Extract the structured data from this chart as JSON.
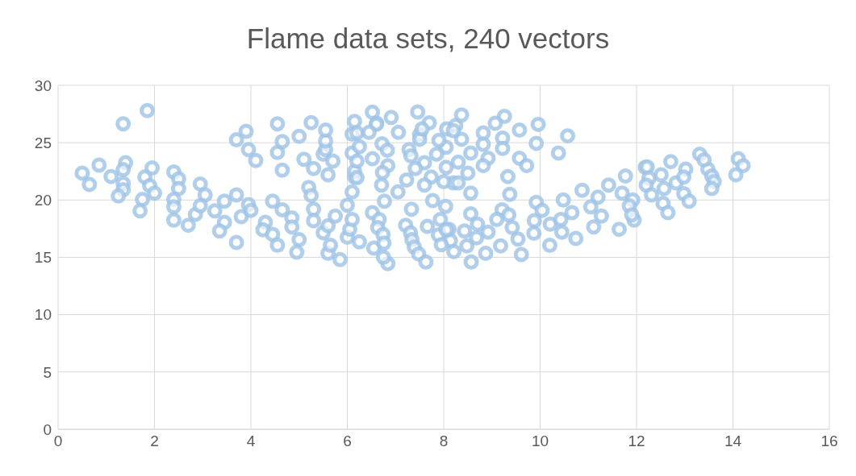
{
  "chart_data": {
    "type": "scatter",
    "title": "Flame data sets, 240 vectors",
    "xlim": [
      0,
      16
    ],
    "xticks": [
      0,
      2,
      4,
      6,
      8,
      10,
      12,
      14,
      16
    ],
    "ylim": [
      0,
      30
    ],
    "yticks": [
      0,
      5,
      10,
      15,
      20,
      25,
      30
    ],
    "grid": true,
    "marker": "circle",
    "series": [
      {
        "color": "#9dc3e6",
        "x": [
          0.5,
          0.65,
          0.85,
          1.1,
          1.35,
          1.4,
          1.35,
          1.35,
          1.35,
          1.25,
          1.85,
          1.95,
          1.8,
          1.9,
          2.0,
          1.75,
          1.7,
          2.4,
          2.5,
          2.5,
          2.4,
          2.4,
          2.4,
          2.7,
          2.85,
          2.95,
          3.05,
          2.95,
          3.25,
          3.45,
          3.45,
          3.35,
          3.7,
          3.8,
          3.7,
          3.95,
          4.0,
          3.7,
          3.9,
          3.95,
          4.1,
          4.45,
          4.3,
          4.25,
          4.45,
          4.55,
          4.65,
          4.85,
          4.85,
          5.0,
          4.95,
          4.55,
          4.55,
          4.65,
          4.65,
          5.0,
          5.1,
          5.25,
          5.3,
          5.2,
          5.25,
          5.3,
          5.3,
          5.5,
          5.6,
          5.6,
          5.65,
          5.75,
          5.85,
          5.5,
          5.55,
          5.55,
          5.55,
          5.6,
          5.7,
          6.0,
          6.05,
          6.1,
          6.0,
          6.1,
          6.15,
          6.15,
          6.1,
          6.1,
          6.15,
          6.2,
          6.25,
          6.2,
          6.2,
          6.25,
          6.52,
          6.61,
          6.91,
          7.46,
          7.7,
          7.06,
          7.5,
          8.06,
          8.25,
          6.72,
          6.83,
          7.28,
          8.05,
          6.52,
          7.32,
          7.6,
          6.84,
          8.05,
          6.73,
          7.41,
          7.74,
          7.23,
          7.6,
          8.2,
          6.71,
          7.05,
          7.77,
          8.04,
          6.77,
          7.33,
          6.52,
          6.66,
          7.93,
          7.21,
          7.66,
          6.63,
          8.11,
          6.74,
          7.31,
          7.34,
          7.89,
          8.14,
          6.55,
          6.76,
          7.39,
          7.48,
          6.84,
          7.63,
          6.75,
          8.37,
          9.26,
          9.07,
          9.96,
          9.57,
          8.82,
          10.57,
          8.37,
          9.22,
          9.92,
          8.2,
          8.82,
          9.22,
          8.56,
          10.38,
          8.92,
          9.57,
          8.3,
          8.82,
          9.72,
          8.5,
          9.33,
          8.3,
          8.56,
          9.37,
          9.92,
          10.48,
          10.87,
          11.42,
          11.77,
          12.18,
          11.2,
          11.7,
          11.05,
          11.92,
          8.56,
          9.21,
          9.35,
          8.7,
          9.1,
          9.88,
          10.21,
          10.43,
          10.66,
          10.04,
          11.27,
          11.11,
          11.95,
          8.43,
          8.92,
          9.42,
          9.87,
          10.45,
          10.74,
          11.64,
          8.48,
          9.18,
          9.54,
          10.2,
          8.21,
          8.87,
          9.61,
          8.57,
          8.68,
          12.22,
          12.71,
          13.31,
          14.11,
          14.21,
          14.06,
          12.51,
          13.02,
          13.48,
          12.26,
          12.82,
          13.56,
          13.61,
          13.56,
          12.2,
          12.57,
          12.31,
          12.98,
          13.09,
          12.55,
          12.65,
          12.98,
          13.4,
          7.5,
          7.55,
          6.6,
          6.45,
          7.9,
          7.85,
          8.0,
          7.95,
          8.05,
          11.85,
          11.9
        ],
        "values": [
          22.35,
          21.35,
          23.05,
          22.05,
          26.65,
          23.25,
          22.65,
          21.45,
          20.9,
          20.35,
          27.8,
          22.8,
          22.0,
          21.25,
          20.6,
          20.05,
          19.05,
          22.45,
          21.85,
          21.0,
          20.05,
          19.4,
          18.25,
          17.8,
          18.75,
          21.4,
          20.45,
          19.5,
          19.05,
          19.9,
          18.05,
          17.3,
          20.45,
          18.55,
          16.3,
          19.6,
          19.1,
          25.25,
          26.0,
          24.4,
          23.45,
          19.9,
          18.05,
          17.4,
          17.0,
          16.05,
          19.15,
          18.45,
          17.65,
          16.55,
          15.45,
          26.65,
          24.15,
          25.1,
          22.6,
          25.55,
          23.55,
          26.75,
          22.75,
          21.1,
          20.4,
          19.2,
          18.2,
          17.15,
          17.75,
          15.35,
          16.05,
          18.6,
          14.8,
          24.0,
          24.4,
          25.15,
          26.1,
          22.2,
          23.4,
          16.75,
          17.45,
          18.3,
          19.55,
          20.7,
          22.0,
          22.5,
          24.1,
          25.75,
          26.85,
          25.85,
          24.65,
          23.4,
          21.95,
          16.35,
          27.66,
          26.7,
          27.2,
          27.68,
          26.73,
          25.9,
          25.7,
          26.2,
          26.5,
          24.9,
          24.35,
          24.4,
          24.6,
          23.6,
          23.85,
          23.25,
          23.0,
          22.85,
          22.4,
          22.75,
          22.0,
          21.75,
          21.3,
          21.5,
          21.3,
          20.7,
          19.95,
          19.45,
          19.9,
          19.2,
          18.9,
          18.3,
          18.3,
          17.8,
          17.7,
          17.6,
          17.45,
          17.0,
          17.15,
          16.55,
          16.95,
          16.45,
          15.8,
          16.25,
          15.9,
          15.3,
          14.45,
          14.6,
          15.0,
          27.42,
          27.3,
          26.7,
          26.6,
          26.1,
          25.85,
          25.6,
          25.3,
          25.4,
          24.95,
          26.05,
          24.85,
          24.5,
          24.1,
          24.1,
          23.65,
          23.65,
          23.3,
          23.0,
          23.0,
          22.35,
          22.05,
          21.5,
          20.6,
          20.5,
          19.8,
          20.0,
          20.85,
          21.3,
          22.1,
          22.85,
          20.25,
          20.6,
          19.4,
          20.0,
          18.8,
          19.15,
          18.7,
          17.9,
          18.3,
          18.2,
          17.9,
          18.3,
          18.9,
          19.1,
          18.6,
          17.65,
          18.25,
          17.3,
          17.2,
          17.6,
          17.1,
          17.2,
          16.65,
          17.45,
          16.0,
          16.0,
          16.6,
          16.05,
          15.5,
          15.35,
          15.25,
          14.6,
          16.7,
          22.88,
          23.35,
          24.0,
          23.6,
          23.0,
          22.2,
          22.2,
          22.7,
          22.7,
          21.9,
          21.5,
          22.1,
          21.6,
          21.0,
          21.3,
          21.0,
          20.45,
          20.55,
          19.9,
          19.7,
          18.9,
          22.0,
          23.5,
          25.3,
          26.2,
          26.6,
          25.9,
          25.2,
          24.0,
          21.6,
          16.1,
          17.4,
          19.5,
          18.7
        ]
      }
    ]
  }
}
